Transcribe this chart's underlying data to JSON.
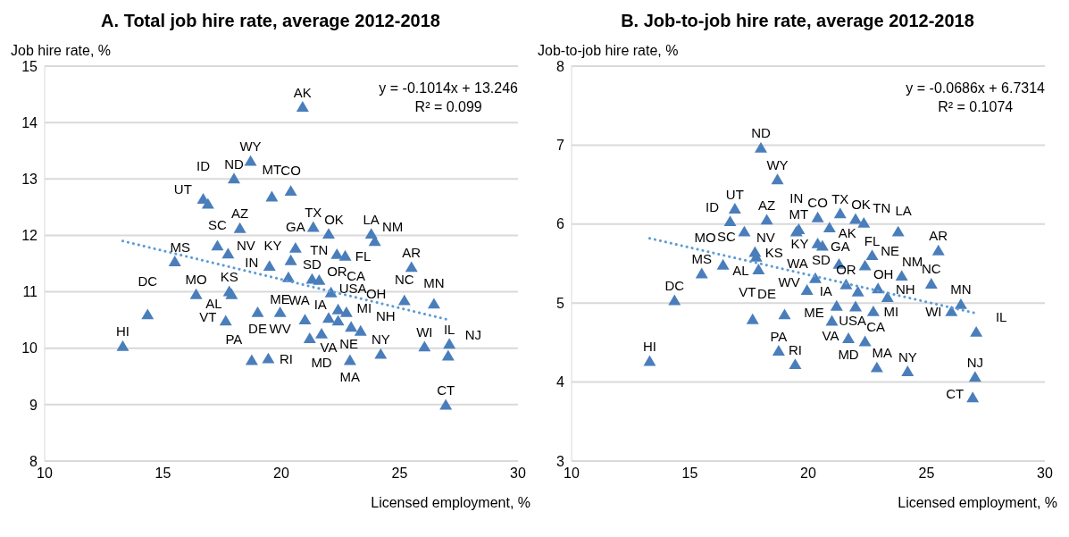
{
  "chart_data": [
    {
      "type": "scatter",
      "title": "A. Total job hire rate, average 2012-2018",
      "xlabel": "Licensed employment, %",
      "ylabel": "Job hire rate, %",
      "xlim": [
        10,
        30
      ],
      "xticks": [
        10,
        15,
        20,
        25,
        30
      ],
      "ylim": [
        8,
        15
      ],
      "yticks": [
        8,
        9,
        10,
        11,
        12,
        13,
        14,
        15
      ],
      "grid": "y",
      "marker": "triangle",
      "legend": false,
      "annotations": [
        "y = -0.1014x + 13.246",
        "R² = 0.099"
      ],
      "series": [
        {
          "type": "scatter",
          "color": "#4a7ebb",
          "x": [
            20.9,
            18.7,
            18.0,
            19.6,
            20.4,
            16.7,
            16.9,
            18.25,
            21.35,
            22.0,
            17.3,
            17.75,
            15.5,
            20.6,
            19.5,
            20.4,
            22.35,
            22.7,
            23.8,
            23.95,
            21.3,
            21.6,
            25.5,
            16.4,
            17.8,
            17.9,
            20.3,
            22.1,
            14.35,
            17.65,
            25.2,
            26.45,
            21.0,
            22.0,
            22.4,
            22.4,
            22.75,
            22.95,
            23.35,
            19.0,
            19.95,
            21.2,
            21.7,
            13.3,
            18.75,
            19.45,
            26.05,
            27.1,
            27.05,
            24.2,
            22.9,
            26.95
          ],
          "values": [
            14.27,
            13.31,
            13.0,
            12.68,
            12.78,
            12.64,
            12.55,
            12.12,
            12.14,
            12.02,
            11.81,
            11.67,
            11.53,
            11.77,
            11.45,
            11.55,
            11.66,
            11.63,
            12.02,
            11.89,
            11.22,
            11.2,
            11.43,
            10.95,
            11.0,
            10.95,
            11.25,
            10.98,
            10.59,
            10.48,
            10.84,
            10.78,
            10.5,
            10.53,
            10.48,
            10.68,
            10.63,
            10.37,
            10.3,
            10.63,
            10.63,
            10.17,
            10.25,
            10.03,
            9.78,
            9.81,
            10.02,
            10.07,
            9.86,
            9.89,
            9.78,
            8.99
          ],
          "value_labels": [
            "AK",
            "WY",
            "ND",
            "MT",
            "CO",
            "ID",
            "UT",
            "AZ",
            "TX",
            "OK",
            "SC",
            "NV",
            "MS",
            "GA",
            "IN",
            "KY",
            "TN",
            "FL",
            "LA",
            "NM",
            "SD",
            "OR",
            "AR",
            "MO",
            "KS",
            "AL",
            "WA",
            "USA",
            "DC",
            "VT",
            "NC",
            "MN",
            "ME",
            "VA",
            "NE",
            "CA",
            "MI",
            "OH",
            "NH",
            "DE",
            "WV",
            "IA",
            "MD",
            "HI",
            "PA",
            "RI",
            "WI",
            "IL",
            "NJ",
            "NY",
            "MA",
            "CT"
          ]
        },
        {
          "type": "line",
          "color": "#5b9bd5",
          "line_style": "dotted",
          "marker": "none",
          "x": [
            13.3,
            27.1
          ],
          "values": [
            11.9,
            10.5
          ]
        }
      ]
    },
    {
      "type": "scatter",
      "title": "B. Job-to-job hire rate, average 2012-2018",
      "xlabel": "Licensed employment, %",
      "ylabel": "Job-to-job hire rate, %",
      "xlim": [
        10,
        30
      ],
      "xticks": [
        10,
        15,
        20,
        25,
        30
      ],
      "ylim": [
        3,
        8
      ],
      "yticks": [
        3,
        4,
        5,
        6,
        7,
        8
      ],
      "grid": "y",
      "marker": "triangle",
      "legend": false,
      "annotations": [
        "y = -0.0686x + 6.7314",
        "R² = 0.1074"
      ],
      "series": [
        {
          "type": "scatter",
          "color": "#4a7ebb",
          "x": [
            20.9,
            18.7,
            18.0,
            19.6,
            20.4,
            16.7,
            16.9,
            18.25,
            21.35,
            22.0,
            17.3,
            17.75,
            15.5,
            20.6,
            19.5,
            20.4,
            22.35,
            22.7,
            23.8,
            23.95,
            21.3,
            21.6,
            25.5,
            16.4,
            17.8,
            17.9,
            20.3,
            22.1,
            14.35,
            17.65,
            25.2,
            26.45,
            21.0,
            22.0,
            22.4,
            22.4,
            22.75,
            22.95,
            23.35,
            19.0,
            19.95,
            21.2,
            21.7,
            13.3,
            18.75,
            19.45,
            26.05,
            27.1,
            27.05,
            24.2,
            22.9,
            26.95
          ],
          "values": [
            5.95,
            6.56,
            6.96,
            5.93,
            6.08,
            6.03,
            6.19,
            6.05,
            6.13,
            6.06,
            5.9,
            5.64,
            5.37,
            5.72,
            5.9,
            5.75,
            6.01,
            5.6,
            5.9,
            5.34,
            5.49,
            5.23,
            5.66,
            5.48,
            5.58,
            5.42,
            5.31,
            5.14,
            5.03,
            4.79,
            5.24,
            4.98,
            4.77,
            4.95,
            5.47,
            4.51,
            4.89,
            5.18,
            5.07,
            4.85,
            5.16,
            4.96,
            4.55,
            4.26,
            4.39,
            4.22,
            4.89,
            4.63,
            4.06,
            4.13,
            4.18,
            3.8
          ],
          "value_labels": [
            "AK",
            "WY",
            "ND",
            "MT",
            "CO",
            "ID",
            "UT",
            "AZ",
            "TX",
            "OK",
            "SC",
            "NV",
            "MS",
            "GA",
            "IN",
            "KY",
            "TN",
            "FL",
            "LA",
            "NM",
            "SD",
            "OR",
            "AR",
            "MO",
            "KS",
            "AL",
            "WA",
            "USA",
            "DC",
            "VT",
            "NC",
            "MN",
            "ME",
            "VA",
            "NE",
            "CA",
            "MI",
            "OH",
            "NH",
            "DE",
            "WV",
            "IA",
            "MD",
            "HI",
            "PA",
            "RI",
            "WI",
            "IL",
            "NJ",
            "NY",
            "MA",
            "CT"
          ]
        },
        {
          "type": "line",
          "color": "#5b9bd5",
          "line_style": "dotted",
          "marker": "none",
          "x": [
            13.3,
            27.1
          ],
          "values": [
            5.82,
            4.87
          ]
        }
      ]
    }
  ]
}
